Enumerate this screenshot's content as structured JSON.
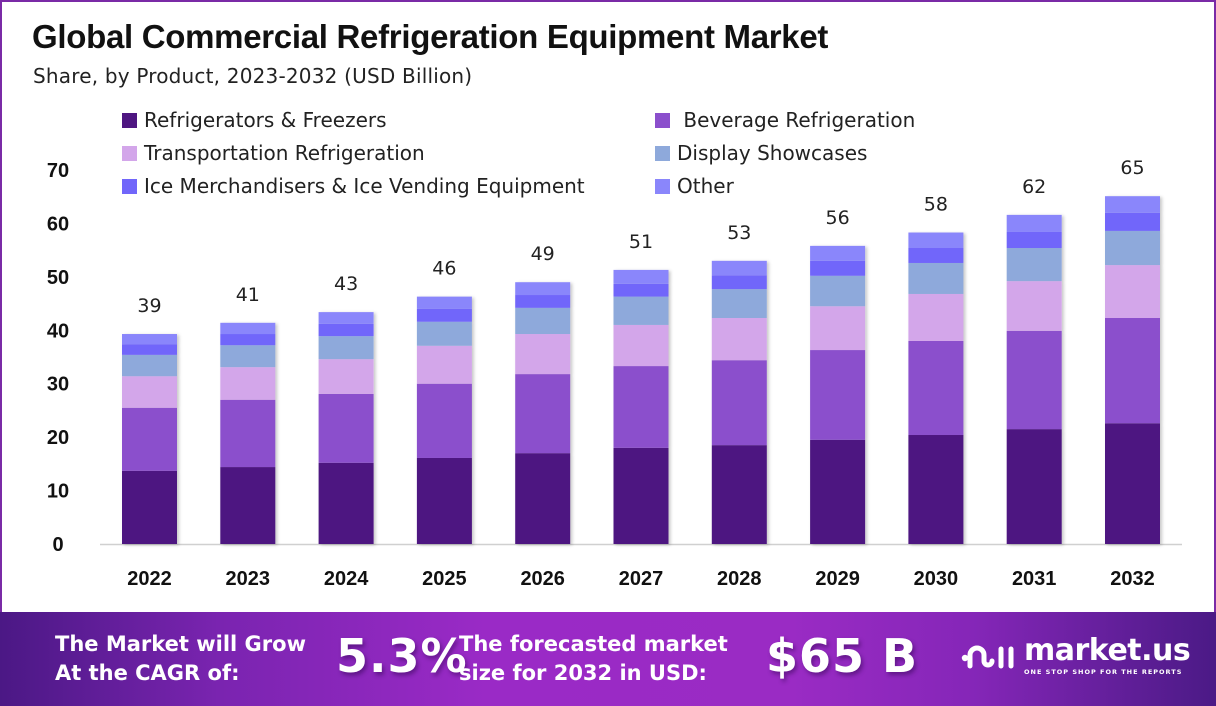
{
  "header": {
    "title": "Global Commercial Refrigeration Equipment Market",
    "subtitle": "Share, by Product, 2023-2032 (USD Billion)"
  },
  "chart_data": {
    "type": "bar",
    "stacked": true,
    "title": "Global Commercial Refrigeration Equipment Market",
    "subtitle": "Share, by Product, 2023-2032 (USD Billion)",
    "xlabel": "",
    "ylabel": "",
    "ylim": [
      0,
      70
    ],
    "yticks": [
      0,
      10,
      20,
      30,
      40,
      50,
      60,
      70
    ],
    "grid": false,
    "legend_position": "top",
    "categories": [
      "2022",
      "2023",
      "2024",
      "2025",
      "2026",
      "2027",
      "2028",
      "2029",
      "2030",
      "2031",
      "2032"
    ],
    "totals": [
      39,
      41,
      43,
      46,
      49,
      51,
      53,
      56,
      58,
      62,
      65
    ],
    "series": [
      {
        "name": "Refrigerators & Freezers",
        "color": "#4e1681",
        "values": [
          13.7,
          14.4,
          15.2,
          16.1,
          17.0,
          18.0,
          18.5,
          19.5,
          20.4,
          21.5,
          22.6
        ]
      },
      {
        "name": "Beverage Refrigeration",
        "color": "#8b4fcc",
        "values": [
          11.8,
          12.6,
          12.9,
          13.9,
          14.8,
          15.3,
          15.9,
          16.8,
          17.6,
          18.4,
          19.7
        ]
      },
      {
        "name": "Transportation Refrigeration",
        "color": "#d3a6ea",
        "values": [
          5.9,
          6.1,
          6.5,
          7.1,
          7.5,
          7.7,
          7.9,
          8.2,
          8.8,
          9.3,
          9.9
        ]
      },
      {
        "name": "Display Showcases",
        "color": "#8ea9db",
        "values": [
          4.0,
          4.1,
          4.3,
          4.5,
          4.9,
          5.3,
          5.4,
          5.7,
          5.8,
          6.2,
          6.4
        ]
      },
      {
        "name": "Ice Merchandisers & Ice Vending Equipment",
        "color": "#7166fa",
        "values": [
          2.0,
          2.1,
          2.3,
          2.4,
          2.4,
          2.4,
          2.6,
          2.8,
          2.8,
          3.0,
          3.4
        ]
      },
      {
        "name": "Other",
        "color": "#8a86fb",
        "values": [
          1.9,
          2.1,
          2.2,
          2.3,
          2.4,
          2.6,
          2.7,
          2.8,
          2.9,
          3.2,
          3.1
        ]
      }
    ]
  },
  "legend": {
    "items": [
      {
        "label": "Refrigerators & Freezers",
        "color": "#4e1681"
      },
      {
        "label": " Beverage Refrigeration",
        "color": "#8b4fcc"
      },
      {
        "label": "Transportation Refrigeration",
        "color": "#d3a6ea"
      },
      {
        "label": "Display Showcases",
        "color": "#8ea9db"
      },
      {
        "label": "Ice Merchandisers & Ice Vending Equipment",
        "color": "#7166fa"
      },
      {
        "label": "Other",
        "color": "#8a86fb"
      }
    ]
  },
  "banner": {
    "cagr_text_line1": "The Market will Grow",
    "cagr_text_line2": "At the CAGR of:",
    "cagr_value": "5.3%",
    "forecast_text_line1": "The forecasted market",
    "forecast_text_line2": "size for 2032 in USD:",
    "forecast_value": "$65 B"
  },
  "brand": {
    "logo_icon": "market-us-logo-icon",
    "name": "market.us",
    "tagline": "ONE STOP SHOP FOR THE REPORTS"
  },
  "colors": {
    "frame": "#7a2aa6",
    "axis_line": "#d0d0d0"
  }
}
